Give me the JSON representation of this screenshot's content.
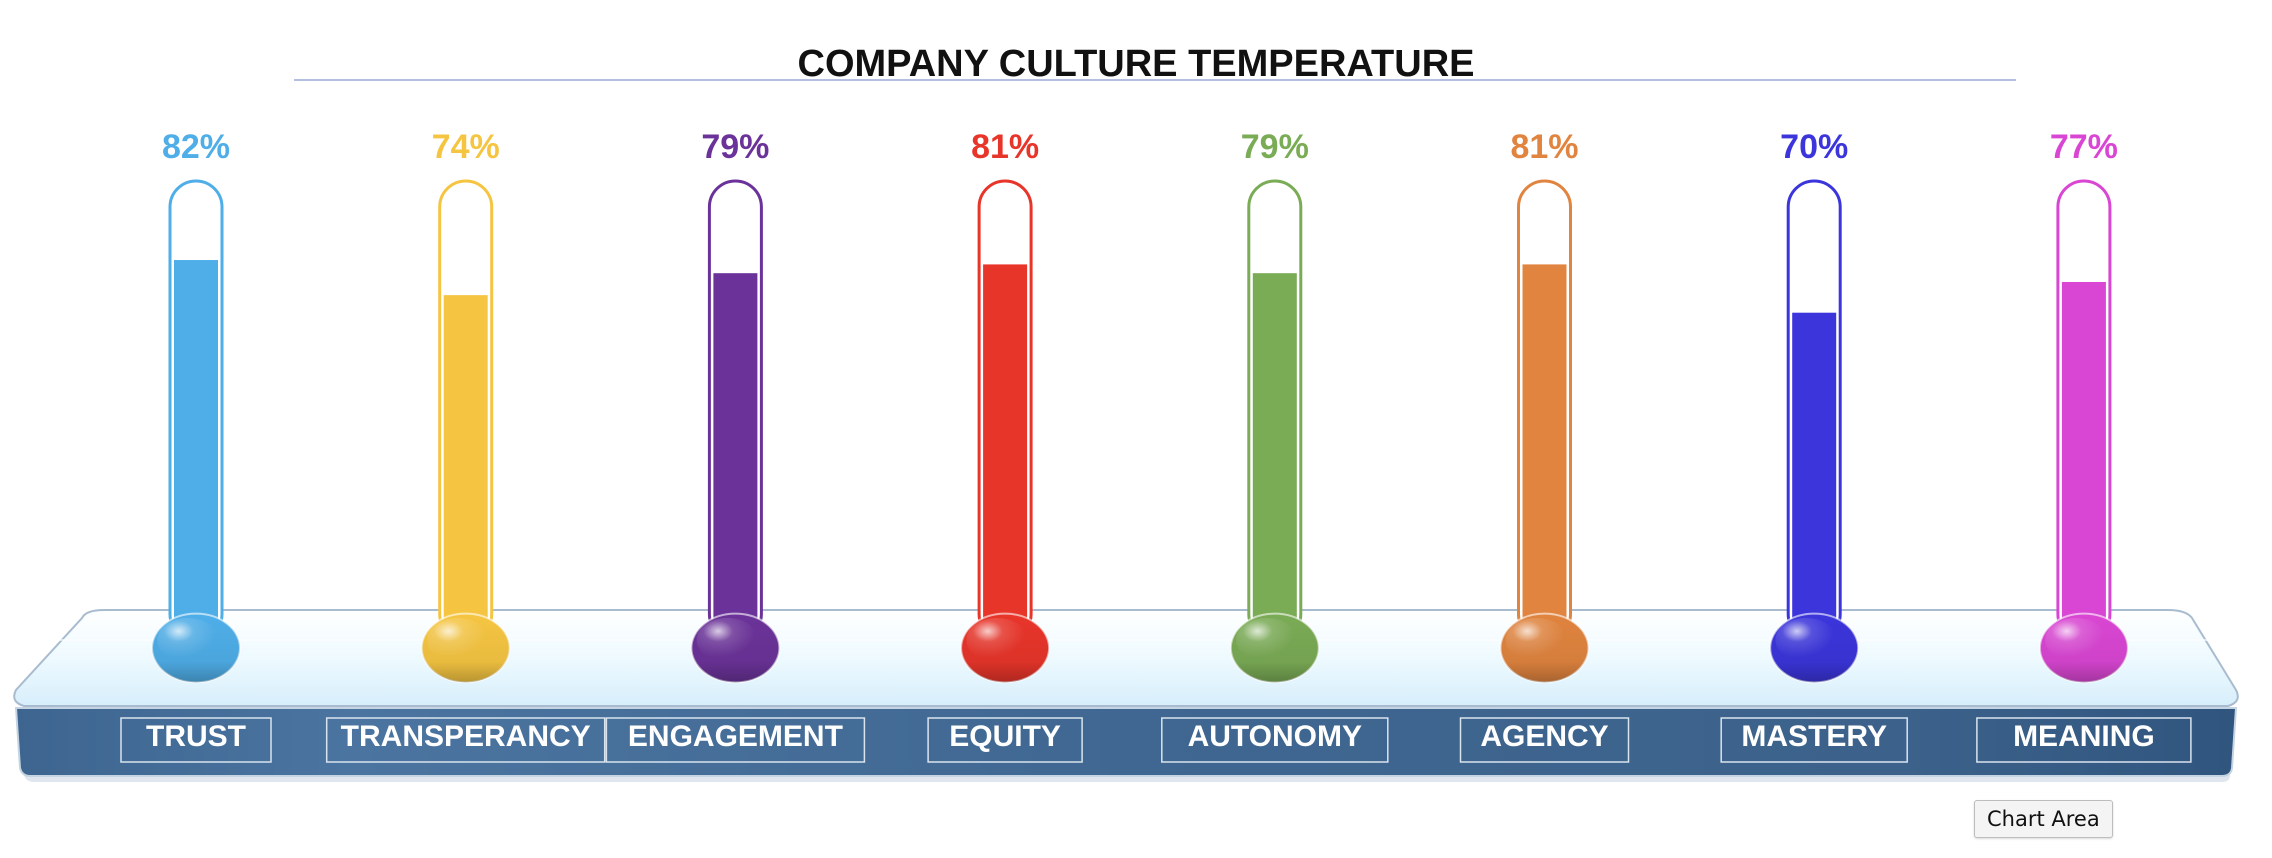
{
  "chart_data": {
    "type": "bar",
    "title": "COMPANY CULTURE TEMPERATURE",
    "categories": [
      "TRUST",
      "TRANSPERANCY",
      "ENGAGEMENT",
      "EQUITY",
      "AUTONOMY",
      "AGENCY",
      "MASTERY",
      "MEANING"
    ],
    "values": [
      82,
      74,
      79,
      81,
      79,
      81,
      70,
      77
    ],
    "value_labels": [
      "82%",
      "74%",
      "79%",
      "81%",
      "79%",
      "81%",
      "70%",
      "77%"
    ],
    "colors": [
      "#4faee8",
      "#f5c542",
      "#6b3399",
      "#e8352a",
      "#7aab55",
      "#e0843f",
      "#3b35db",
      "#d946d3"
    ],
    "ylim": [
      0,
      100
    ],
    "style": "thermometer"
  },
  "tooltip": {
    "label": "Chart Area"
  }
}
